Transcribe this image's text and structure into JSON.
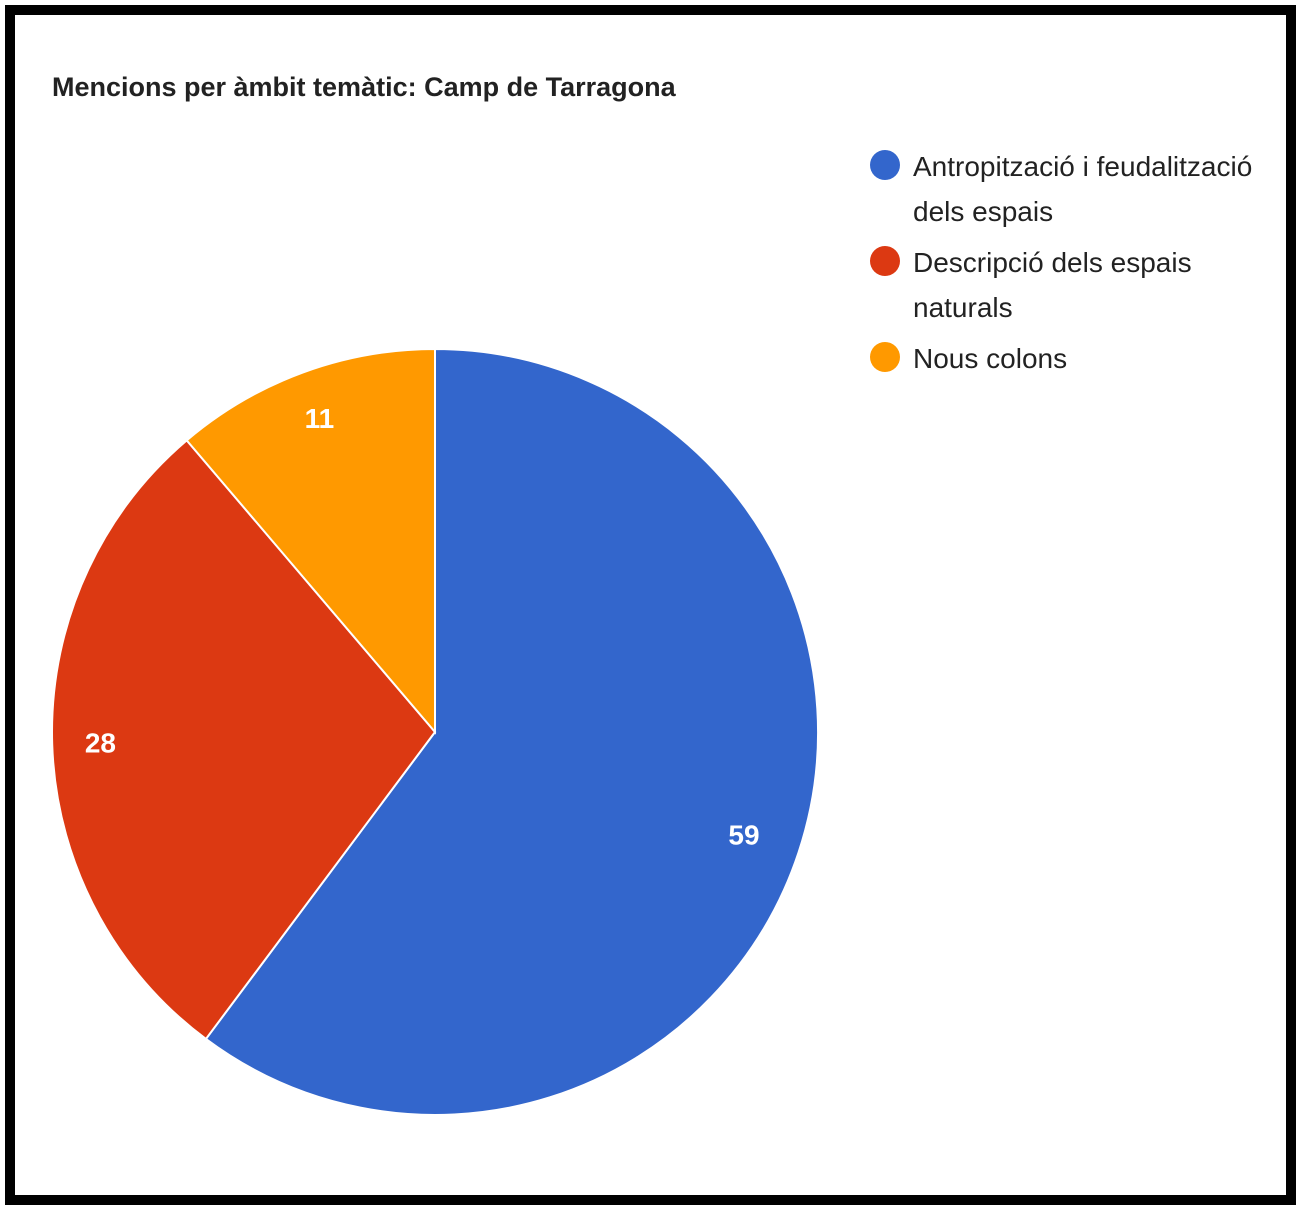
{
  "chart_data": {
    "type": "pie",
    "title": "Mencions per àmbit temàtic: Camp de Tarragona",
    "slices": [
      {
        "label": "Antropització i feudalització dels espais",
        "value": 59,
        "color": "#3366cc"
      },
      {
        "label": "Descripció dels espais naturals",
        "value": 28,
        "color": "#dc3912"
      },
      {
        "label": "Nous colons",
        "value": 11,
        "color": "#ff9900"
      }
    ],
    "legend_position": "right",
    "start_angle": "12 o'clock",
    "direction": "clockwise"
  },
  "legend": {
    "items": [
      {
        "label": "Antropització i feudalització dels espais",
        "color": "#3366cc"
      },
      {
        "label": "Descripció dels espais naturals",
        "color": "#dc3912"
      },
      {
        "label": "Nous colons",
        "color": "#ff9900"
      }
    ]
  }
}
